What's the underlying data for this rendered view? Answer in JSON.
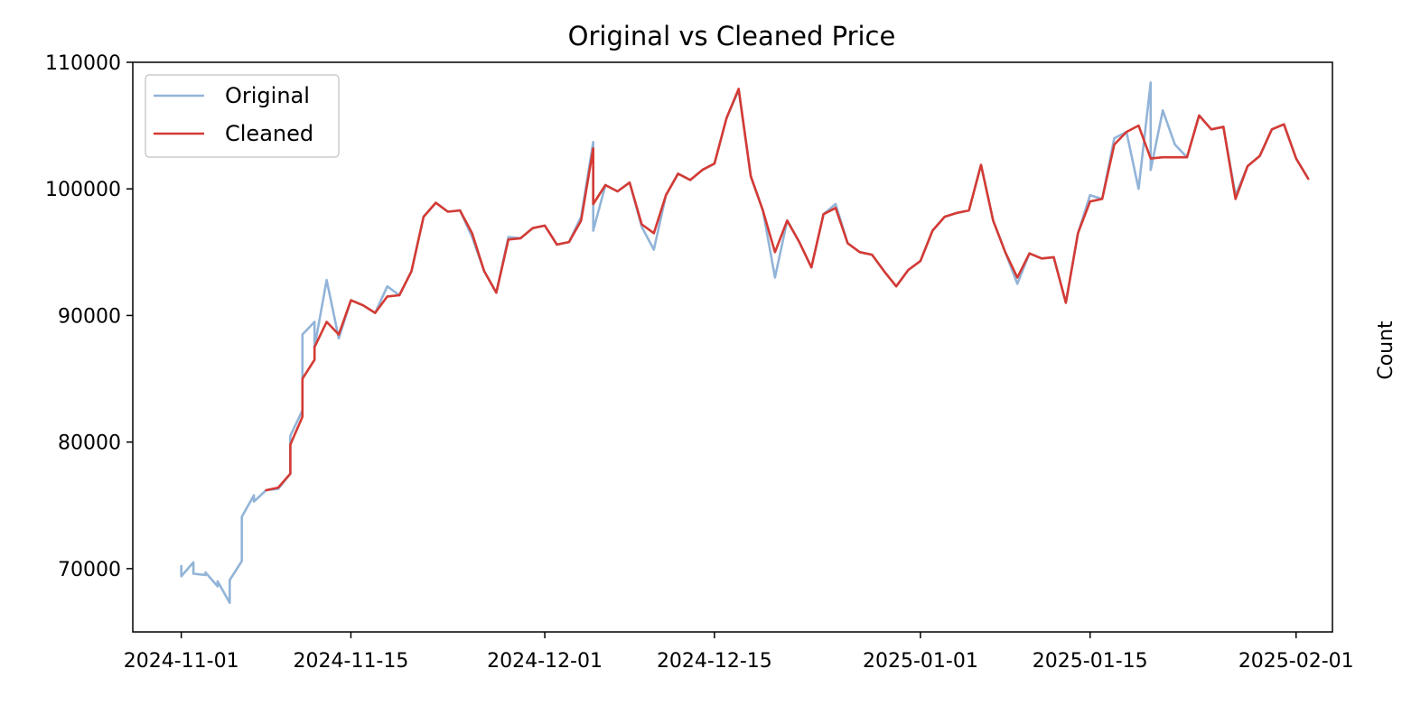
{
  "chart_data": {
    "type": "line",
    "title": "Original vs Cleaned Price",
    "xlabel": "",
    "ylabel": "",
    "right_ylabel": "Count",
    "x_axis_type": "date",
    "xlim": [
      "2024-10-28",
      "2025-02-04"
    ],
    "ylim": [
      65000,
      110000
    ],
    "yticks": [
      70000,
      80000,
      90000,
      100000,
      110000
    ],
    "ytick_labels": [
      "70000",
      "80000",
      "90000",
      "100000",
      "110000"
    ],
    "xticks": [
      "2024-11-01",
      "2024-11-15",
      "2024-12-01",
      "2024-12-15",
      "2025-01-01",
      "2025-01-15",
      "2025-02-01"
    ],
    "grid": false,
    "legend": {
      "position": "upper-left",
      "entries": [
        "Original",
        "Cleaned"
      ]
    },
    "series": [
      {
        "name": "Original",
        "color": "#92b4d8",
        "points": [
          [
            "2024-11-01",
            70200
          ],
          [
            "2024-11-01",
            69400
          ],
          [
            "2024-11-02",
            70500
          ],
          [
            "2024-11-02",
            69600
          ],
          [
            "2024-11-03",
            69500
          ],
          [
            "2024-11-03",
            69700
          ],
          [
            "2024-11-04",
            68600
          ],
          [
            "2024-11-04",
            69000
          ],
          [
            "2024-11-05",
            67300
          ],
          [
            "2024-11-05",
            69100
          ],
          [
            "2024-11-06",
            70600
          ],
          [
            "2024-11-06",
            74100
          ],
          [
            "2024-11-07",
            75800
          ],
          [
            "2024-11-07",
            75300
          ],
          [
            "2024-11-08",
            76200
          ],
          [
            "2024-11-09",
            76300
          ],
          [
            "2024-11-10",
            77500
          ],
          [
            "2024-11-10",
            80500
          ],
          [
            "2024-11-11",
            82500
          ],
          [
            "2024-11-11",
            88500
          ],
          [
            "2024-11-12",
            89500
          ],
          [
            "2024-11-12",
            87500
          ],
          [
            "2024-11-13",
            92800
          ],
          [
            "2024-11-14",
            88200
          ],
          [
            "2024-11-15",
            91200
          ],
          [
            "2024-11-16",
            90800
          ],
          [
            "2024-11-17",
            90200
          ],
          [
            "2024-11-18",
            92300
          ],
          [
            "2024-11-19",
            91600
          ],
          [
            "2024-11-20",
            93500
          ],
          [
            "2024-11-21",
            97800
          ],
          [
            "2024-11-22",
            98900
          ],
          [
            "2024-11-23",
            98200
          ],
          [
            "2024-11-24",
            98300
          ],
          [
            "2024-11-25",
            96200
          ],
          [
            "2024-11-26",
            93500
          ],
          [
            "2024-11-27",
            91800
          ],
          [
            "2024-11-28",
            96200
          ],
          [
            "2024-11-29",
            96100
          ],
          [
            "2024-11-30",
            96900
          ],
          [
            "2024-12-01",
            97100
          ],
          [
            "2024-12-02",
            95600
          ],
          [
            "2024-12-03",
            95800
          ],
          [
            "2024-12-04",
            97800
          ],
          [
            "2024-12-05",
            103700
          ],
          [
            "2024-12-05",
            96700
          ],
          [
            "2024-12-06",
            100300
          ],
          [
            "2024-12-07",
            99800
          ],
          [
            "2024-12-08",
            100500
          ],
          [
            "2024-12-09",
            97000
          ],
          [
            "2024-12-10",
            95200
          ],
          [
            "2024-12-11",
            99500
          ],
          [
            "2024-12-12",
            101200
          ],
          [
            "2024-12-13",
            100700
          ],
          [
            "2024-12-14",
            101500
          ],
          [
            "2024-12-15",
            102000
          ],
          [
            "2024-12-16",
            105600
          ],
          [
            "2024-12-17",
            107800
          ],
          [
            "2024-12-18",
            101000
          ],
          [
            "2024-12-19",
            98300
          ],
          [
            "2024-12-20",
            93000
          ],
          [
            "2024-12-21",
            97500
          ],
          [
            "2024-12-22",
            95800
          ],
          [
            "2024-12-23",
            93800
          ],
          [
            "2024-12-24",
            98000
          ],
          [
            "2024-12-25",
            98800
          ],
          [
            "2024-12-26",
            95700
          ],
          [
            "2024-12-27",
            95000
          ],
          [
            "2024-12-28",
            94800
          ],
          [
            "2024-12-29",
            93500
          ],
          [
            "2024-12-30",
            92300
          ],
          [
            "2024-12-31",
            93600
          ],
          [
            "2025-01-01",
            94300
          ],
          [
            "2025-01-02",
            96700
          ],
          [
            "2025-01-03",
            97800
          ],
          [
            "2025-01-04",
            98100
          ],
          [
            "2025-01-05",
            98300
          ],
          [
            "2025-01-06",
            101900
          ],
          [
            "2025-01-07",
            97500
          ],
          [
            "2025-01-08",
            95000
          ],
          [
            "2025-01-09",
            92500
          ],
          [
            "2025-01-10",
            94900
          ],
          [
            "2025-01-11",
            94500
          ],
          [
            "2025-01-12",
            94600
          ],
          [
            "2025-01-13",
            91000
          ],
          [
            "2025-01-14",
            96500
          ],
          [
            "2025-01-15",
            99500
          ],
          [
            "2025-01-16",
            99200
          ],
          [
            "2025-01-17",
            104000
          ],
          [
            "2025-01-18",
            104500
          ],
          [
            "2025-01-19",
            100000
          ],
          [
            "2025-01-20",
            108400
          ],
          [
            "2025-01-20",
            101500
          ],
          [
            "2025-01-21",
            106200
          ],
          [
            "2025-01-22",
            103500
          ],
          [
            "2025-01-23",
            102500
          ],
          [
            "2025-01-24",
            105800
          ],
          [
            "2025-01-25",
            104700
          ],
          [
            "2025-01-26",
            104900
          ],
          [
            "2025-01-27",
            99500
          ],
          [
            "2025-01-28",
            101800
          ],
          [
            "2025-01-29",
            102600
          ],
          [
            "2025-01-30",
            104700
          ],
          [
            "2025-01-31",
            105100
          ],
          [
            "2025-02-01",
            102400
          ],
          [
            "2025-02-02",
            100800
          ]
        ]
      },
      {
        "name": "Cleaned",
        "color": "#d43a34",
        "points": [
          [
            "2024-11-08",
            76200
          ],
          [
            "2024-11-09",
            76400
          ],
          [
            "2024-11-10",
            77500
          ],
          [
            "2024-11-10",
            79800
          ],
          [
            "2024-11-11",
            82000
          ],
          [
            "2024-11-11",
            85000
          ],
          [
            "2024-11-12",
            86500
          ],
          [
            "2024-11-12",
            87500
          ],
          [
            "2024-11-13",
            89500
          ],
          [
            "2024-11-14",
            88500
          ],
          [
            "2024-11-15",
            91200
          ],
          [
            "2024-11-16",
            90800
          ],
          [
            "2024-11-17",
            90200
          ],
          [
            "2024-11-18",
            91500
          ],
          [
            "2024-11-19",
            91600
          ],
          [
            "2024-11-20",
            93500
          ],
          [
            "2024-11-21",
            97800
          ],
          [
            "2024-11-22",
            98900
          ],
          [
            "2024-11-23",
            98200
          ],
          [
            "2024-11-24",
            98300
          ],
          [
            "2024-11-25",
            96500
          ],
          [
            "2024-11-26",
            93500
          ],
          [
            "2024-11-27",
            91800
          ],
          [
            "2024-11-28",
            96000
          ],
          [
            "2024-11-29",
            96100
          ],
          [
            "2024-11-30",
            96900
          ],
          [
            "2024-12-01",
            97100
          ],
          [
            "2024-12-02",
            95600
          ],
          [
            "2024-12-03",
            95800
          ],
          [
            "2024-12-04",
            97500
          ],
          [
            "2024-12-05",
            103200
          ],
          [
            "2024-12-05",
            98800
          ],
          [
            "2024-12-06",
            100300
          ],
          [
            "2024-12-07",
            99800
          ],
          [
            "2024-12-08",
            100500
          ],
          [
            "2024-12-09",
            97200
          ],
          [
            "2024-12-10",
            96500
          ],
          [
            "2024-12-11",
            99500
          ],
          [
            "2024-12-12",
            101200
          ],
          [
            "2024-12-13",
            100700
          ],
          [
            "2024-12-14",
            101500
          ],
          [
            "2024-12-15",
            102000
          ],
          [
            "2024-12-16",
            105600
          ],
          [
            "2024-12-17",
            107900
          ],
          [
            "2024-12-18",
            101000
          ],
          [
            "2024-12-19",
            98300
          ],
          [
            "2024-12-20",
            95000
          ],
          [
            "2024-12-21",
            97500
          ],
          [
            "2024-12-22",
            95800
          ],
          [
            "2024-12-23",
            93800
          ],
          [
            "2024-12-24",
            98000
          ],
          [
            "2024-12-25",
            98500
          ],
          [
            "2024-12-26",
            95700
          ],
          [
            "2024-12-27",
            95000
          ],
          [
            "2024-12-28",
            94800
          ],
          [
            "2024-12-29",
            93500
          ],
          [
            "2024-12-30",
            92300
          ],
          [
            "2024-12-31",
            93600
          ],
          [
            "2025-01-01",
            94300
          ],
          [
            "2025-01-02",
            96700
          ],
          [
            "2025-01-03",
            97800
          ],
          [
            "2025-01-04",
            98100
          ],
          [
            "2025-01-05",
            98300
          ],
          [
            "2025-01-06",
            101900
          ],
          [
            "2025-01-07",
            97500
          ],
          [
            "2025-01-08",
            95000
          ],
          [
            "2025-01-09",
            93000
          ],
          [
            "2025-01-10",
            94900
          ],
          [
            "2025-01-11",
            94500
          ],
          [
            "2025-01-12",
            94600
          ],
          [
            "2025-01-13",
            91000
          ],
          [
            "2025-01-14",
            96500
          ],
          [
            "2025-01-15",
            99000
          ],
          [
            "2025-01-16",
            99200
          ],
          [
            "2025-01-17",
            103500
          ],
          [
            "2025-01-18",
            104500
          ],
          [
            "2025-01-19",
            105000
          ],
          [
            "2025-01-20",
            102400
          ],
          [
            "2025-01-21",
            102500
          ],
          [
            "2025-01-22",
            102500
          ],
          [
            "2025-01-23",
            102500
          ],
          [
            "2025-01-24",
            105800
          ],
          [
            "2025-01-25",
            104700
          ],
          [
            "2025-01-26",
            104900
          ],
          [
            "2025-01-27",
            99200
          ],
          [
            "2025-01-28",
            101800
          ],
          [
            "2025-01-29",
            102600
          ],
          [
            "2025-01-30",
            104700
          ],
          [
            "2025-01-31",
            105100
          ],
          [
            "2025-02-01",
            102400
          ],
          [
            "2025-02-02",
            100800
          ]
        ]
      }
    ]
  }
}
